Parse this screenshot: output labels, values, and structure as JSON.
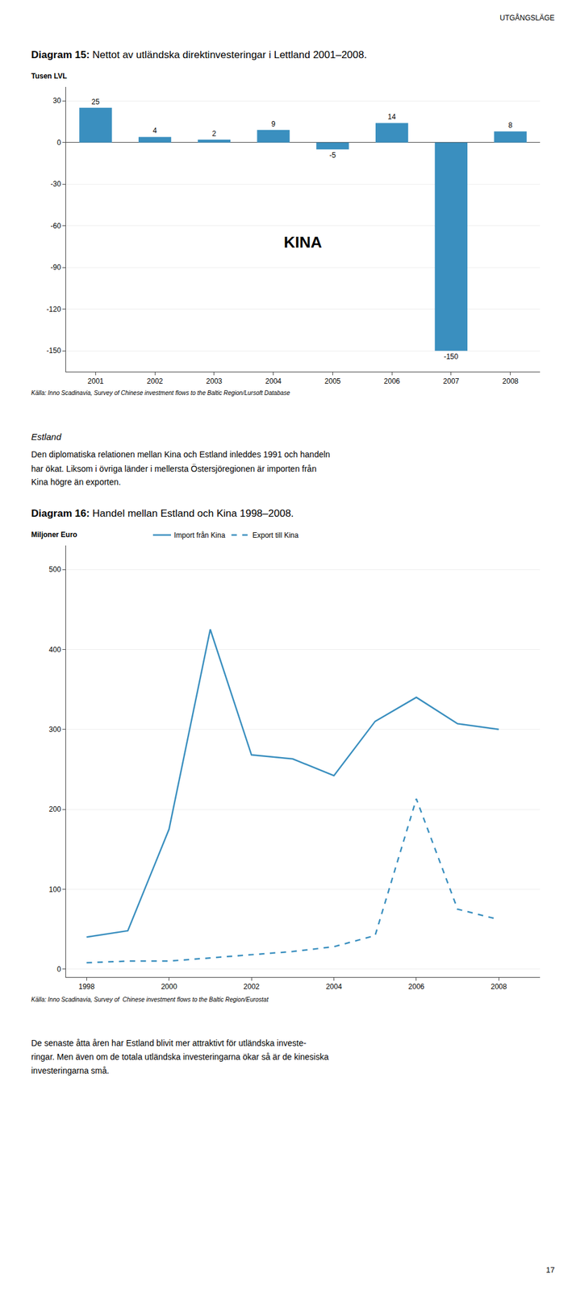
{
  "chart_data": [
    {
      "type": "bar",
      "title": "Diagram 15: Nettot av utländska direktinvesteringar i Lettland 2001–2008.",
      "y_label": "Tusen LVL",
      "categories": [
        "2001",
        "2002",
        "2003",
        "2004",
        "2005",
        "2006",
        "2007",
        "2008"
      ],
      "values": [
        25,
        4,
        2,
        9,
        -5,
        14,
        -150,
        8
      ],
      "color": "#3a8fbf",
      "ylim": [
        -165,
        40
      ],
      "yticks": [
        30,
        0,
        -30,
        -60,
        -90,
        -120,
        -150
      ],
      "grid": true,
      "data_labels": true,
      "annotations": [
        "UTGÅNGSLÄGE",
        "KINA",
        "Källa: Inno Scadinavia, Survey of Chinese investment flows to the Baltic Region/Lursoft Database"
      ]
    },
    {
      "type": "line",
      "title": "Diagram 16: Handel mellan Estland och Kina 1998–2008.",
      "y_label": "Miljoner Euro",
      "x": [
        1998,
        1999,
        2000,
        2001,
        2002,
        2003,
        2004,
        2005,
        2006,
        2007,
        2008
      ],
      "series": [
        {
          "name": "Import från Kina",
          "color": "#3a8fbf",
          "line_style": "solid",
          "values": [
            40,
            48,
            175,
            425,
            268,
            263,
            242,
            310,
            340,
            307,
            300
          ]
        },
        {
          "name": "Export till Kina",
          "color": "#3a8fbf",
          "line_style": "dashed",
          "values": [
            8,
            10,
            10,
            14,
            18,
            22,
            28,
            42,
            213,
            75,
            62
          ]
        }
      ],
      "xlim": [
        1997.5,
        2009.0
      ],
      "xticks": [
        1998,
        2000,
        2002,
        2004,
        2006,
        2008
      ],
      "ylim": [
        -10,
        530
      ],
      "yticks": [
        0,
        100,
        200,
        300,
        400,
        500
      ],
      "grid": true,
      "legend": "top",
      "annotations": [
        "Estland",
        "Den diplomatiska relationen mellan Kina och Estland inleddes 1991 och handeln",
        "har ökat. Liksom i övriga länder i mellersta Östersjöregionen är importen från",
        "Kina högre än exporten.",
        "Källa: Inno Scadinavia, Survey of  Chinese investment flows to the Baltic Region/Eurostat",
        "De senaste åtta åren har Estland blivit mer attraktivt för utländska investe-",
        "ringar. Men även om de totala utländska investeringarna ökar så är de kinesiska",
        "investeringarna små.",
        "17"
      ]
    }
  ]
}
